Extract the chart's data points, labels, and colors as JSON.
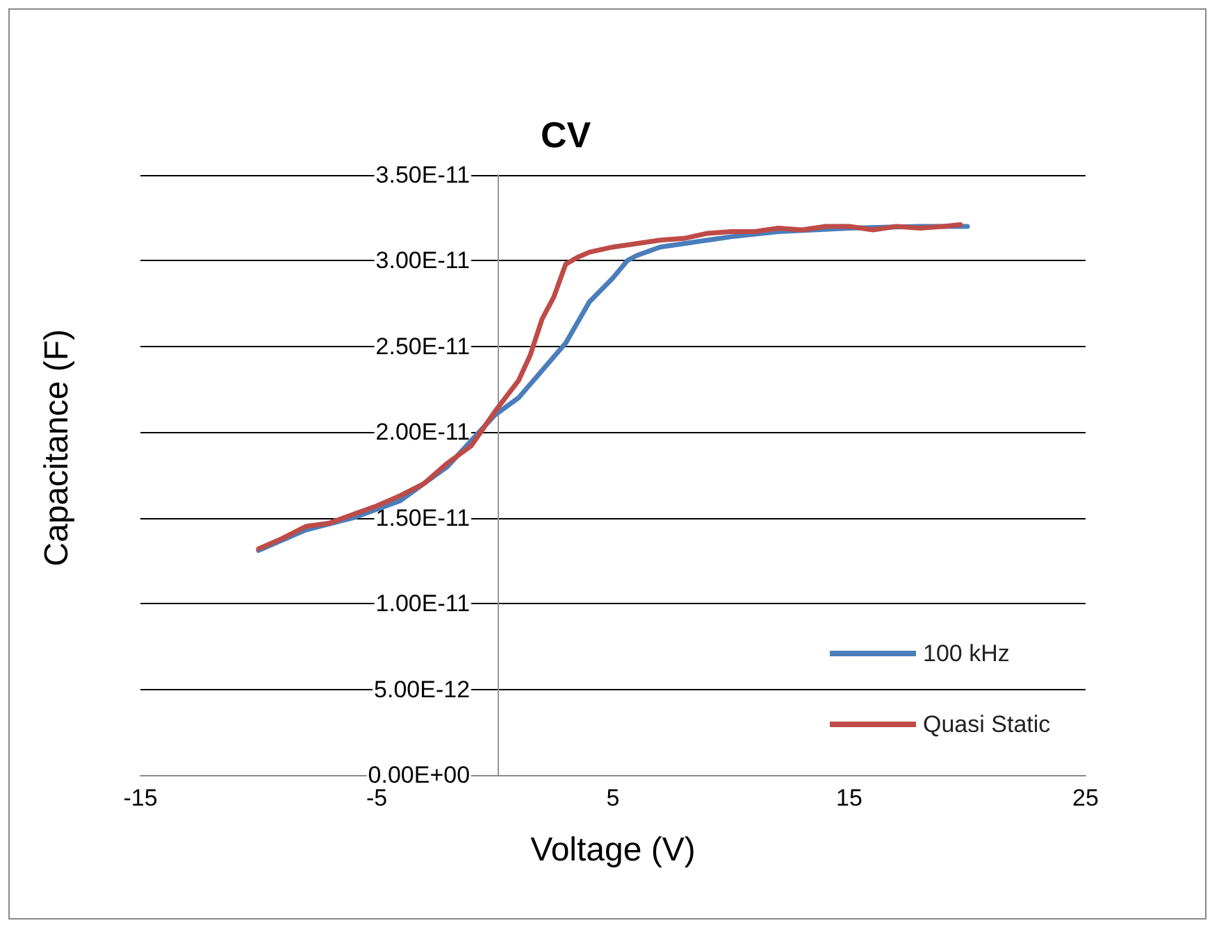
{
  "chart_data": {
    "type": "line",
    "title": "CV",
    "xlabel": "Voltage (V)",
    "ylabel": "Capacitance (F)",
    "xlim": [
      -15,
      25
    ],
    "xticks": [
      -15,
      -5,
      5,
      15,
      25
    ],
    "ylim": [
      0,
      3.5e-11
    ],
    "yticks": [
      {
        "value": 0,
        "label": "0.00E+00"
      },
      {
        "value": 5e-12,
        "label": "5.00E-12"
      },
      {
        "value": 1e-11,
        "label": "1.00E-11"
      },
      {
        "value": 1.5e-11,
        "label": "1.50E-11"
      },
      {
        "value": 2e-11,
        "label": "2.00E-11"
      },
      {
        "value": 2.5e-11,
        "label": "2.50E-11"
      },
      {
        "value": 3e-11,
        "label": "3.00E-11"
      },
      {
        "value": 3.5e-11,
        "label": "3.50E-11"
      }
    ],
    "grid": "y",
    "legend": "right",
    "marker": "none",
    "line_style": "solid",
    "series": [
      {
        "name": "100 kHz",
        "color": "#4a7ebb",
        "x": [
          -10,
          -8,
          -6,
          -4,
          -2,
          0,
          1,
          2,
          3,
          4,
          5,
          5.6,
          6,
          7,
          8,
          10,
          12,
          15,
          18,
          20
        ],
        "values": [
          1.31e-11,
          1.43e-11,
          1.5e-11,
          1.6e-11,
          1.8e-11,
          2.1e-11,
          2.2e-11,
          2.36e-11,
          2.52e-11,
          2.76e-11,
          2.9e-11,
          3e-11,
          3.03e-11,
          3.08e-11,
          3.1e-11,
          3.14e-11,
          3.17e-11,
          3.19e-11,
          3.2e-11,
          3.2e-11
        ]
      },
      {
        "name": "Quasi Static",
        "color": "#be4b48",
        "x": [
          -10,
          -9,
          -8,
          -7,
          -6,
          -5,
          -4,
          -3,
          -2,
          -1,
          0,
          1,
          1.5,
          2,
          2.5,
          3,
          3.5,
          4,
          5,
          6,
          7,
          8,
          9,
          10,
          11,
          12,
          13,
          14,
          15,
          16,
          17,
          18,
          19,
          19.7
        ],
        "values": [
          1.32e-11,
          1.38e-11,
          1.45e-11,
          1.47e-11,
          1.52e-11,
          1.57e-11,
          1.63e-11,
          1.7e-11,
          1.82e-11,
          1.92e-11,
          2.12e-11,
          2.3e-11,
          2.45e-11,
          2.66e-11,
          2.79e-11,
          2.98e-11,
          3.02e-11,
          3.05e-11,
          3.08e-11,
          3.1e-11,
          3.12e-11,
          3.13e-11,
          3.16e-11,
          3.17e-11,
          3.17e-11,
          3.19e-11,
          3.18e-11,
          3.2e-11,
          3.2e-11,
          3.18e-11,
          3.2e-11,
          3.19e-11,
          3.2e-11,
          3.21e-11
        ]
      }
    ]
  }
}
